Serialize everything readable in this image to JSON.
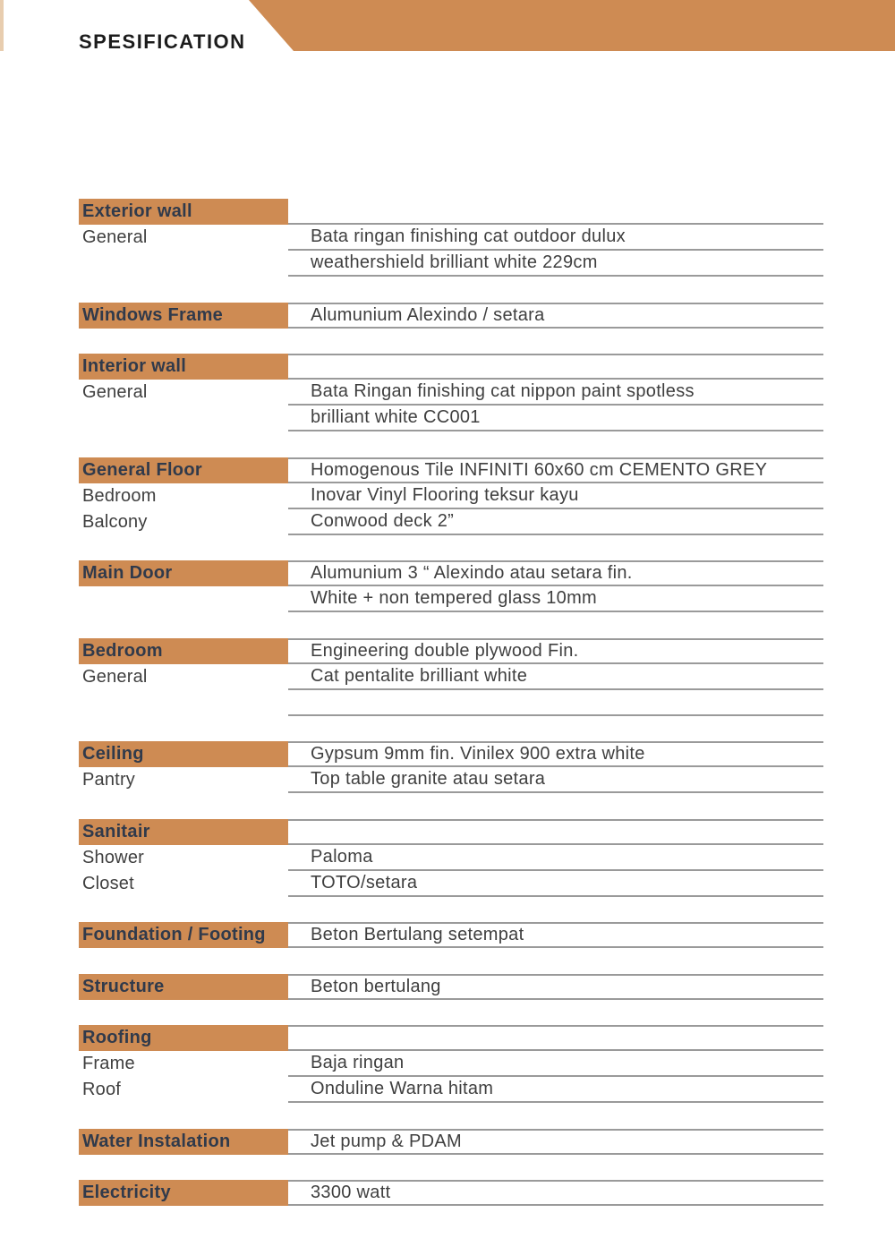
{
  "page": {
    "title": "SPESIFICATION"
  },
  "colors": {
    "accent": "#CE8B53",
    "line": "#9A9A9A",
    "label_text": "#303A4B",
    "value_text": "#3F3F3F",
    "title_text": "#1C1C1C",
    "edge_sliver": "#E8CDAF"
  },
  "table": {
    "sections": [
      {
        "label": "Exterior wall",
        "header_value": "",
        "rows": [
          {
            "label": "General",
            "value": "Bata ringan finishing cat outdoor dulux"
          },
          {
            "label": "",
            "value": "weathershield brilliant white 229cm"
          }
        ]
      },
      {
        "label": "Windows Frame",
        "header_value": "Alumunium Alexindo / setara",
        "rows": []
      },
      {
        "label": "Interior wall",
        "header_value": "",
        "rows": [
          {
            "label": "General",
            "value": "Bata Ringan finishing cat nippon paint spotless"
          },
          {
            "label": "",
            "value": "brilliant white CC001"
          }
        ]
      },
      {
        "label": "General Floor",
        "header_value": "Homogenous Tile INFINITI 60x60 cm CEMENTO GREY",
        "rows": [
          {
            "label": "Bedroom",
            "value": "Inovar Vinyl Flooring teksur kayu"
          },
          {
            "label": "Balcony",
            "value": "Conwood deck 2”"
          }
        ]
      },
      {
        "label": "Main Door",
        "header_value": "Alumunium  3 “ Alexindo atau setara fin.",
        "rows": [
          {
            "label": "",
            "value": "White + non tempered glass 10mm"
          }
        ]
      },
      {
        "label": "Bedroom",
        "header_value": "Engineering double plywood Fin.",
        "rows": [
          {
            "label": "General",
            "value": "Cat pentalite brilliant white"
          },
          {
            "label": "",
            "value": ""
          }
        ]
      },
      {
        "label": "Ceiling",
        "header_value": "Gypsum 9mm fin. Vinilex 900 extra white",
        "rows": [
          {
            "label": "Pantry",
            "value": "Top table granite atau setara"
          }
        ]
      },
      {
        "label": "Sanitair",
        "header_value": "",
        "rows": [
          {
            "label": "Shower",
            "value": "Paloma"
          },
          {
            "label": "Closet",
            "value": "TOTO/setara"
          }
        ]
      },
      {
        "label": "Foundation / Footing",
        "header_value": "Beton Bertulang setempat",
        "rows": []
      },
      {
        "label": "Structure",
        "header_value": "Beton bertulang",
        "rows": []
      },
      {
        "label": "Roofing",
        "header_value": "",
        "rows": [
          {
            "label": "Frame",
            "value": "Baja ringan"
          },
          {
            "label": "Roof",
            "value": "Onduline Warna hitam"
          }
        ]
      },
      {
        "label": "Water Instalation",
        "header_value": "Jet pump & PDAM",
        "rows": []
      },
      {
        "label": "Electricity",
        "header_value": "3300 watt",
        "rows": []
      }
    ]
  }
}
